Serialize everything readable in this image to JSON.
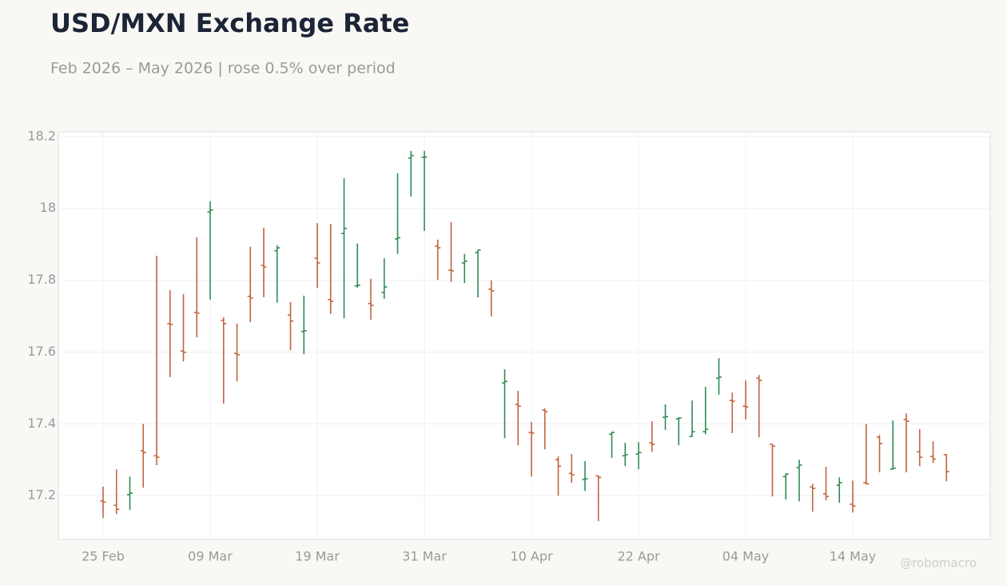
{
  "chart_data": {
    "type": "ohlc",
    "title": "USD/MXN Exchange Rate",
    "subtitle": "Feb 2026 – May 2026 | rose 0.5% over period",
    "watermark": "@robomacro",
    "categories": [
      "25 Feb",
      null,
      null,
      null,
      null,
      null,
      null,
      null,
      "09 Mar",
      null,
      null,
      null,
      null,
      null,
      null,
      null,
      "19 Mar",
      null,
      null,
      null,
      null,
      null,
      null,
      null,
      "31 Mar",
      null,
      null,
      null,
      null,
      null,
      null,
      null,
      "10 Apr",
      null,
      null,
      null,
      null,
      null,
      null,
      null,
      "22 Apr",
      null,
      null,
      null,
      null,
      null,
      null,
      null,
      "04 May",
      null,
      null,
      null,
      null,
      null,
      null,
      null,
      "14 May",
      null,
      null,
      null,
      null,
      null,
      null,
      null
    ],
    "open": [
      17.185,
      17.173,
      17.203,
      17.325,
      17.311,
      17.679,
      17.603,
      17.71,
      17.99,
      17.688,
      17.596,
      17.755,
      17.841,
      17.882,
      17.703,
      17.657,
      17.861,
      17.746,
      17.93,
      17.784,
      17.735,
      17.766,
      17.915,
      18.14,
      18.142,
      17.895,
      17.828,
      17.848,
      17.877,
      17.775,
      17.514,
      17.454,
      17.376,
      17.438,
      17.3,
      17.262,
      17.245,
      17.255,
      17.371,
      17.311,
      17.316,
      17.347,
      17.418,
      17.414,
      17.365,
      17.378,
      17.527,
      17.465,
      17.449,
      17.527,
      17.343,
      17.253,
      17.278,
      17.224,
      17.205,
      17.229,
      17.176,
      17.236,
      17.363,
      17.274,
      17.412,
      17.322,
      17.309,
      17.314
    ],
    "high": [
      17.225,
      17.273,
      17.253,
      17.4,
      17.868,
      17.772,
      17.761,
      17.919,
      18.02,
      17.697,
      17.679,
      17.893,
      17.946,
      17.897,
      17.739,
      17.757,
      17.959,
      17.957,
      18.084,
      17.902,
      17.804,
      17.861,
      18.098,
      18.16,
      18.16,
      17.913,
      17.962,
      17.873,
      17.884,
      17.799,
      17.552,
      17.492,
      17.405,
      17.443,
      17.309,
      17.316,
      17.296,
      17.256,
      17.378,
      17.347,
      17.349,
      17.407,
      17.454,
      17.418,
      17.465,
      17.503,
      17.583,
      17.487,
      17.521,
      17.536,
      17.343,
      17.262,
      17.3,
      17.233,
      17.28,
      17.251,
      17.242,
      17.4,
      17.369,
      17.409,
      17.429,
      17.385,
      17.351,
      17.316
    ],
    "low": [
      17.138,
      17.149,
      17.16,
      17.222,
      17.285,
      17.53,
      17.574,
      17.641,
      17.746,
      17.456,
      17.518,
      17.683,
      17.752,
      17.737,
      17.605,
      17.594,
      17.779,
      17.706,
      17.694,
      17.779,
      17.69,
      17.748,
      17.873,
      18.033,
      17.937,
      17.801,
      17.795,
      17.792,
      17.752,
      17.699,
      17.36,
      17.34,
      17.253,
      17.329,
      17.2,
      17.236,
      17.213,
      17.129,
      17.305,
      17.282,
      17.273,
      17.322,
      17.383,
      17.34,
      17.363,
      17.371,
      17.481,
      17.374,
      17.412,
      17.363,
      17.198,
      17.189,
      17.184,
      17.155,
      17.187,
      17.18,
      17.153,
      17.231,
      17.265,
      17.273,
      17.265,
      17.282,
      17.291,
      17.24
    ],
    "close": [
      17.182,
      17.162,
      17.207,
      17.32,
      17.307,
      17.677,
      17.599,
      17.708,
      17.995,
      17.679,
      17.592,
      17.75,
      17.837,
      17.89,
      17.686,
      17.659,
      17.848,
      17.741,
      17.944,
      17.786,
      17.73,
      17.781,
      17.918,
      18.147,
      18.143,
      17.89,
      17.826,
      17.853,
      17.884,
      17.77,
      17.518,
      17.449,
      17.374,
      17.434,
      17.282,
      17.258,
      17.247,
      17.251,
      17.376,
      17.314,
      17.32,
      17.343,
      17.42,
      17.416,
      17.378,
      17.385,
      17.53,
      17.463,
      17.447,
      17.521,
      17.338,
      17.26,
      17.285,
      17.22,
      17.198,
      17.236,
      17.171,
      17.233,
      17.345,
      17.276,
      17.407,
      17.307,
      17.302,
      17.267
    ],
    "up_color": "#2e8b57",
    "down_color": "#c0643c",
    "ylim": [
      17.078,
      18.213
    ],
    "yticks": [
      17.2,
      17.4,
      17.6,
      17.8,
      18,
      18.2
    ],
    "grid": true
  }
}
